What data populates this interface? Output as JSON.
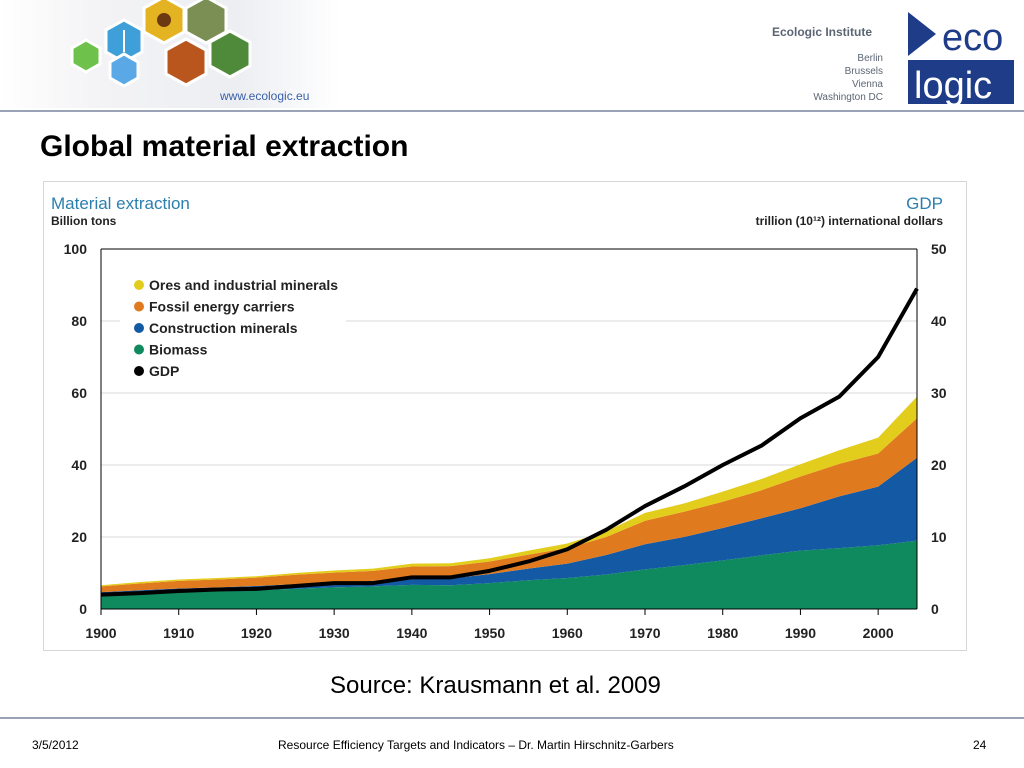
{
  "header": {
    "url": "www.ecologic.eu",
    "institute": "Ecologic Institute",
    "cities": [
      "Berlin",
      "Brussels",
      "Vienna",
      "Washington DC"
    ],
    "logo_top": "eco",
    "logo_bottom": "logic"
  },
  "slide": {
    "title": "Global material extraction",
    "source": "Source: Krausmann et al. 2009"
  },
  "footer": {
    "date": "3/5/2012",
    "center": "Resource Efficiency Targets and Indicators – Dr. Martin Hirschnitz-Garbers",
    "page": "24"
  },
  "colors": {
    "ores": "#e3cd1c",
    "fossil": "#e07a1f",
    "construction": "#1459a4",
    "biomass": "#0e8a5e",
    "gdp": "#000000"
  },
  "chart_data": {
    "type": "area",
    "stacked": true,
    "left_axis_title": "Material extraction",
    "left_axis_unit": "Billion tons",
    "right_axis_title": "GDP",
    "right_axis_unit": "trillion (10¹²) international dollars",
    "ylim_left": [
      0,
      100
    ],
    "ylim_right": [
      0,
      50
    ],
    "xlim": [
      1900,
      2005
    ],
    "x_ticks": [
      1900,
      1910,
      1920,
      1930,
      1940,
      1950,
      1960,
      1970,
      1980,
      1990,
      2000
    ],
    "y_ticks_left": [
      0,
      20,
      40,
      60,
      80,
      100
    ],
    "y_ticks_right": [
      0,
      10,
      20,
      30,
      40,
      50
    ],
    "grid": true,
    "legend_position": "top-left",
    "legend": [
      {
        "key": "ores",
        "label": "Ores and industrial minerals"
      },
      {
        "key": "fossil",
        "label": "Fossil energy carriers"
      },
      {
        "key": "construction",
        "label": "Construction minerals"
      },
      {
        "key": "biomass",
        "label": "Biomass"
      },
      {
        "key": "gdp",
        "label": "GDP"
      }
    ],
    "x": [
      1900,
      1905,
      1910,
      1915,
      1920,
      1925,
      1930,
      1935,
      1940,
      1945,
      1950,
      1955,
      1960,
      1965,
      1970,
      1975,
      1980,
      1985,
      1990,
      1995,
      2000,
      2005
    ],
    "series": [
      {
        "key": "biomass",
        "name": "Biomass",
        "axis": "left",
        "values": [
          3.8,
          4.2,
          4.6,
          4.9,
          5.2,
          5.6,
          6.0,
          6.3,
          6.7,
          6.6,
          7.2,
          8.0,
          8.6,
          9.6,
          11.0,
          12.2,
          13.5,
          14.9,
          16.2,
          16.9,
          17.7,
          19.0
        ]
      },
      {
        "key": "construction",
        "name": "Construction minerals",
        "axis": "left",
        "values": [
          0.9,
          1.0,
          1.1,
          1.1,
          1.2,
          1.3,
          1.4,
          1.5,
          1.8,
          1.9,
          2.5,
          3.2,
          4.0,
          5.4,
          7.0,
          7.8,
          9.0,
          10.3,
          11.8,
          14.4,
          16.3,
          23.0
        ]
      },
      {
        "key": "fossil",
        "name": "Fossil energy carriers",
        "axis": "left",
        "values": [
          1.6,
          1.9,
          2.1,
          2.2,
          2.3,
          2.6,
          2.7,
          2.8,
          3.3,
          3.4,
          3.5,
          3.9,
          4.3,
          5.0,
          6.5,
          7.0,
          7.3,
          7.8,
          8.8,
          9.0,
          9.2,
          11.0
        ]
      },
      {
        "key": "ores",
        "name": "Ores and industrial minerals",
        "axis": "left",
        "values": [
          0.3,
          0.4,
          0.4,
          0.4,
          0.4,
          0.5,
          0.6,
          0.6,
          0.8,
          0.8,
          0.9,
          1.1,
          1.3,
          1.6,
          2.2,
          2.3,
          2.8,
          3.1,
          3.4,
          3.8,
          4.4,
          6.0
        ]
      },
      {
        "key": "gdp",
        "name": "GDP",
        "axis": "right",
        "values": [
          2.0,
          2.2,
          2.5,
          2.7,
          2.8,
          3.2,
          3.6,
          3.6,
          4.4,
          4.4,
          5.3,
          6.6,
          8.3,
          11.0,
          14.3,
          17.0,
          20.0,
          22.7,
          26.5,
          29.5,
          35.0,
          44.5
        ]
      }
    ]
  }
}
